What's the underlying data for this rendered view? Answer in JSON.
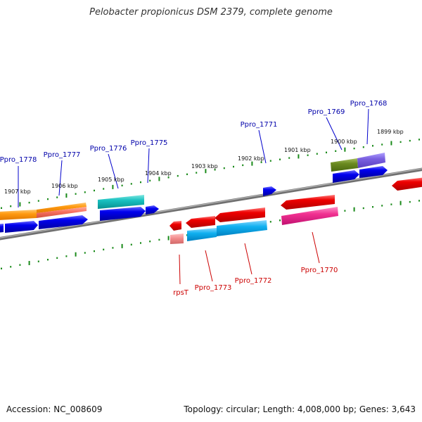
{
  "title": "Pelobacter propionicus DSM 2379, complete genome",
  "footer": {
    "accession": "Accession: NC_008609",
    "topology": "Topology: circular; Length: 4,008,000 bp; Genes: 3,643"
  },
  "scale_labels": [
    "1907 kbp",
    "1906 kbp",
    "1905 kbp",
    "1904 kbp",
    "1903 kbp",
    "1902 kbp",
    "1901 kbp",
    "1900 kbp",
    "1899 kbp"
  ],
  "gene_labels_forward": [
    "Ppro_1778",
    "Ppro_1777",
    "Ppro_1776",
    "Ppro_1775",
    "Ppro_1771",
    "Ppro_1769",
    "Ppro_1768"
  ],
  "gene_labels_reverse": [
    "rpsT",
    "Ppro_1773",
    "Ppro_1772",
    "Ppro_1770"
  ],
  "colors": {
    "label_forward": "#0000aa",
    "label_reverse": "#cc0000",
    "backbone": "#808080",
    "ticks": "#1a8a1a"
  }
}
